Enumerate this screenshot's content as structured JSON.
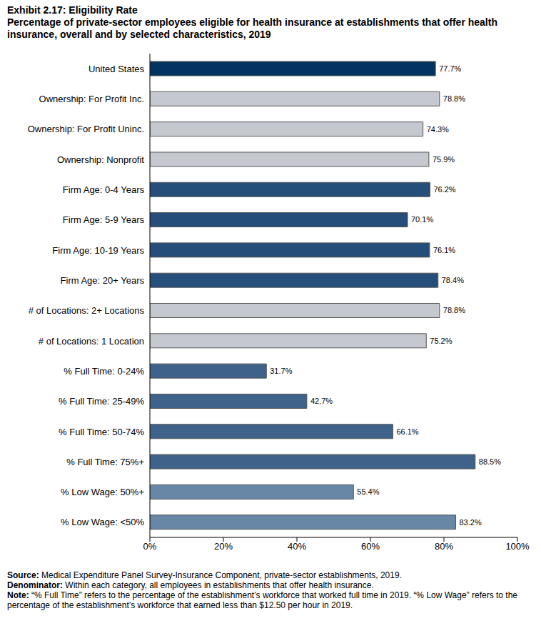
{
  "chart_data": {
    "type": "bar",
    "orientation": "horizontal",
    "title": "Exhibit 2.17: Eligibility Rate",
    "subtitle": "Percentage of private-sector employees eligible for health insurance at establishments that offer health insurance, overall and by selected characteristics, 2019",
    "categories": [
      "United States",
      "Ownership: For Profit Inc.",
      "Ownership: For Profit Uninc.",
      "Ownership: Nonprofit",
      "Firm Age: 0-4 Years",
      "Firm Age: 5-9 Years",
      "Firm Age: 10-19 Years",
      "Firm Age: 20+ Years",
      "# of Locations: 2+ Locations",
      "# of Locations: 1 Location",
      "% Full Time: 0-24%",
      "% Full Time: 25-49%",
      "% Full Time: 50-74%",
      "% Full Time: 75%+",
      "% Low Wage: 50%+",
      "% Low Wage: <50%"
    ],
    "values": [
      77.7,
      78.8,
      74.3,
      75.9,
      76.2,
      70.1,
      76.1,
      78.4,
      78.8,
      75.2,
      31.7,
      42.7,
      66.1,
      88.5,
      55.4,
      83.2
    ],
    "value_labels": [
      "77.7%",
      "78.8%",
      "74.3%",
      "75.9%",
      "76.2%",
      "70.1%",
      "76.1%",
      "78.4%",
      "78.8%",
      "75.2%",
      "31.7%",
      "42.7%",
      "66.1%",
      "88.5%",
      "55.4%",
      "83.2%"
    ],
    "colors": [
      "#033461",
      "#c5c9cf",
      "#c5c9cf",
      "#c5c9cf",
      "#254f7a",
      "#254f7a",
      "#254f7a",
      "#254f7a",
      "#c5c9cf",
      "#c5c9cf",
      "#3e6289",
      "#3e6289",
      "#3e6289",
      "#3e6289",
      "#6887a7",
      "#6887a7"
    ],
    "data_labels": true,
    "grid": false,
    "xlim": [
      0,
      100
    ],
    "xticks": [
      {
        "value": 0,
        "label": "0%"
      },
      {
        "value": 20,
        "label": "20%"
      },
      {
        "value": 40,
        "label": "40%"
      },
      {
        "value": 60,
        "label": "60%"
      },
      {
        "value": 80,
        "label": "80%"
      },
      {
        "value": 100,
        "label": "100%"
      }
    ],
    "footnotes": [
      {
        "label": "Source:",
        "text": "Medical Expenditure Panel Survey-Insurance Component, private-sector establishments, 2019."
      },
      {
        "label": "Denominator:",
        "text": "Within each category, all employees in establishments that offer health insurance."
      },
      {
        "label": "Note:",
        "text": "“% Full Time” refers to the percentage of the establishment’s workforce that worked full time in 2019. “% Low Wage” refers to the percentage of the establishment’s workforce that earned less than $12.50 per hour in 2019."
      }
    ]
  }
}
